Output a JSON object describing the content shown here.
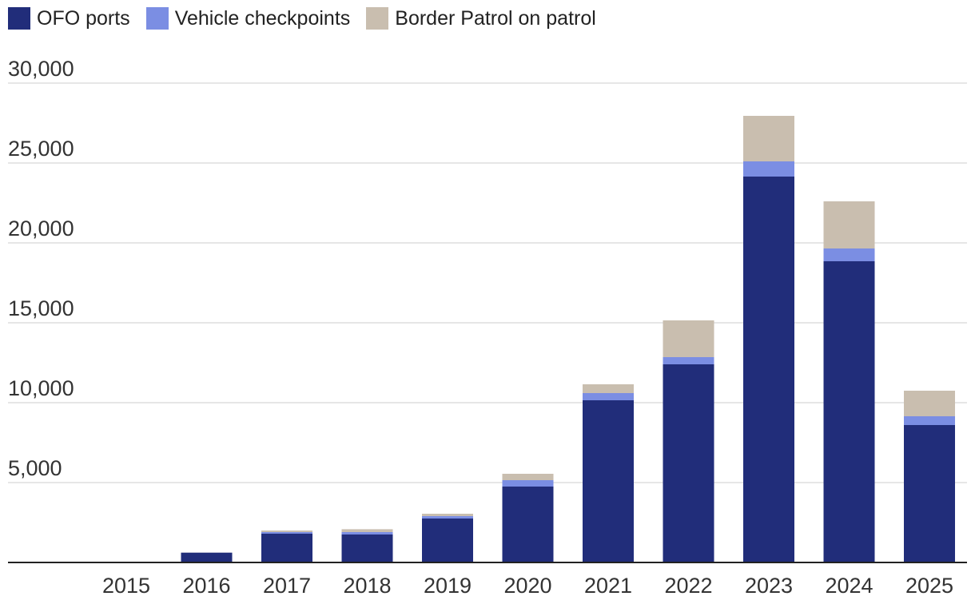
{
  "chart_data": {
    "type": "bar",
    "stacked": true,
    "categories": [
      "2015",
      "2016",
      "2017",
      "2018",
      "2019",
      "2020",
      "2021",
      "2022",
      "2023",
      "2024",
      "2025"
    ],
    "series": [
      {
        "name": "OFO ports",
        "color": "#212d7a",
        "values": [
          0,
          600,
          1800,
          1750,
          2750,
          4750,
          10150,
          12400,
          24150,
          18850,
          8600
        ]
      },
      {
        "name": "Vehicle checkpoints",
        "color": "#7b8ee3",
        "values": [
          0,
          20,
          100,
          150,
          150,
          400,
          450,
          450,
          950,
          800,
          550
        ]
      },
      {
        "name": "Border Patrol on patrol",
        "color": "#c9beaf",
        "values": [
          0,
          20,
          100,
          180,
          150,
          400,
          550,
          2300,
          2850,
          2950,
          1600
        ]
      }
    ],
    "ylim": [
      0,
      30000
    ],
    "yticks": [
      5000,
      10000,
      15000,
      20000,
      25000,
      30000
    ],
    "ytick_labels": [
      "5,000",
      "10,000",
      "15,000",
      "20,000",
      "25,000",
      "30,000"
    ],
    "grid": true,
    "legend_position": "top-left",
    "title": "",
    "xlabel": "",
    "ylabel": ""
  }
}
